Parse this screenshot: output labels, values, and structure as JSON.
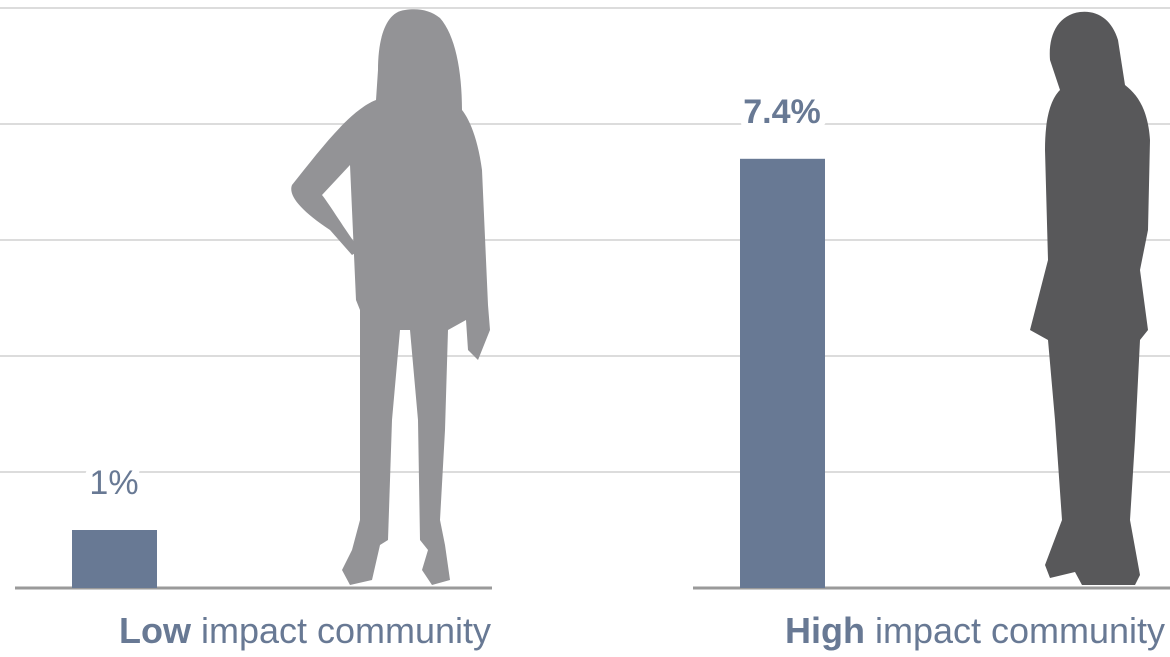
{
  "chart_data": {
    "type": "bar",
    "categories": [
      "Low impact community",
      "High impact community"
    ],
    "values": [
      1,
      7.4
    ],
    "value_labels": [
      "1%",
      "7.4%"
    ],
    "color": "#687994",
    "ylim": [
      0,
      10
    ],
    "yticks": [
      0,
      2,
      4,
      6,
      8,
      10
    ],
    "grid": true
  }
}
